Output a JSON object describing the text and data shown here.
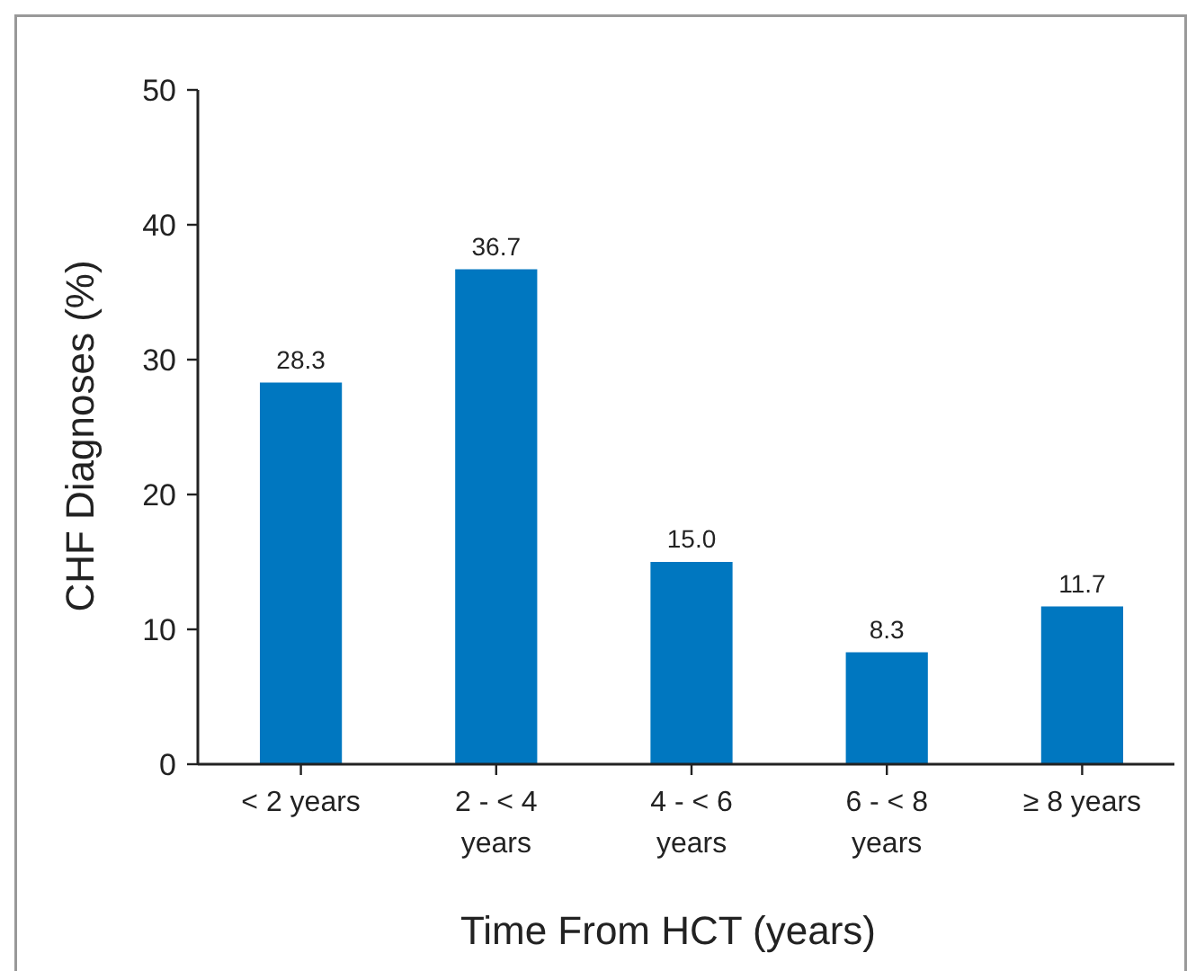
{
  "chart_data": {
    "type": "bar",
    "xlabel": "Time From HCT (years)",
    "ylabel": "CHF Diagnoses (%)",
    "categories": [
      "< 2 years",
      "2 - < 4\nyears",
      "4 - < 6\nyears",
      "6 - < 8\nyears",
      "≥ 8 years"
    ],
    "values": [
      28.3,
      36.7,
      15.0,
      8.3,
      11.7
    ],
    "color": "#0077c0",
    "value_labels": [
      "28.3",
      "36.7",
      "15.0",
      "8.3",
      "11.7"
    ],
    "ylim": [
      0,
      50
    ],
    "yticks": [
      0,
      10,
      20,
      30,
      40,
      50
    ]
  }
}
